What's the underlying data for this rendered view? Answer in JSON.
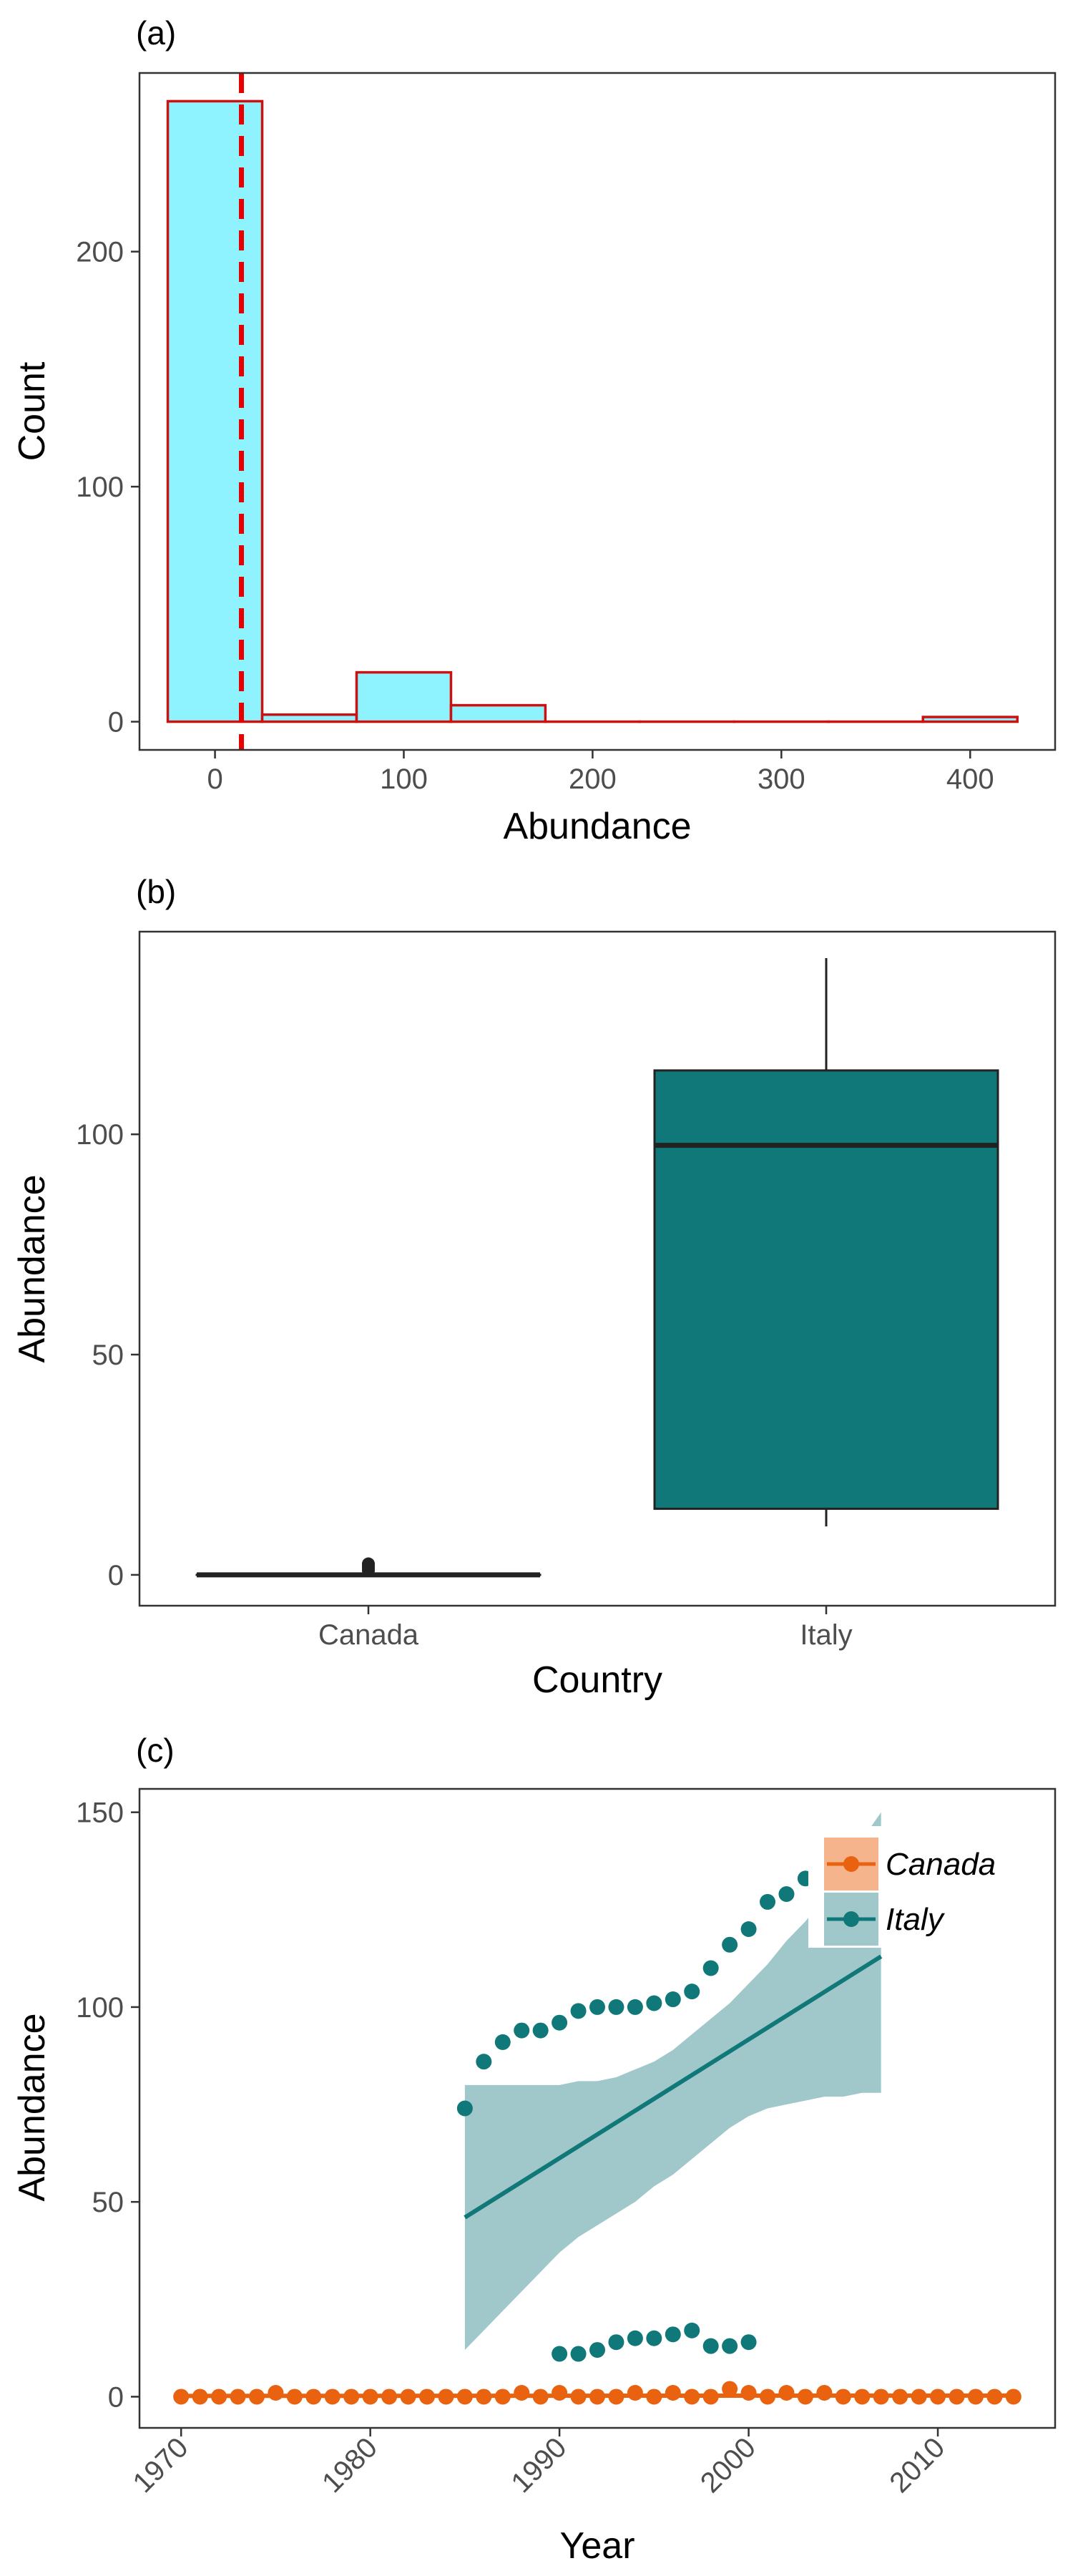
{
  "chart_data": [
    {
      "panel": "(a)",
      "type": "histogram",
      "xlabel": "Abundance",
      "ylabel": "Count",
      "xlim": [
        -40,
        445
      ],
      "ylim": [
        -12,
        276
      ],
      "x_ticks": [
        0,
        100,
        200,
        300,
        400
      ],
      "y_ticks": [
        0,
        100,
        200
      ],
      "bins": [
        {
          "start": -25,
          "end": 25,
          "count": 264
        },
        {
          "start": 25,
          "end": 75,
          "count": 3
        },
        {
          "start": 75,
          "end": 125,
          "count": 21
        },
        {
          "start": 125,
          "end": 175,
          "count": 7
        },
        {
          "start": 175,
          "end": 225,
          "count": 0
        },
        {
          "start": 225,
          "end": 275,
          "count": 0
        },
        {
          "start": 275,
          "end": 325,
          "count": 0
        },
        {
          "start": 325,
          "end": 375,
          "count": 0
        },
        {
          "start": 375,
          "end": 425,
          "count": 2
        }
      ],
      "reference_line": {
        "x": 14,
        "style": "dashed",
        "color": "#e60000"
      },
      "fill_color": "#8ef3ff",
      "border_color": "#cc1111",
      "grid": false
    },
    {
      "panel": "(b)",
      "type": "box",
      "xlabel": "Country",
      "ylabel": "Abundance",
      "ylim": [
        -7,
        146
      ],
      "y_ticks": [
        0,
        50,
        100
      ],
      "categories": [
        "Canada",
        "Italy"
      ],
      "boxes": [
        {
          "category": "Canada",
          "min": 0,
          "q1": 0,
          "median": 0,
          "q3": 0,
          "max": 0,
          "outliers": [
            1,
            1.5,
            2,
            2.5
          ],
          "fill": "#ffffff"
        },
        {
          "category": "Italy",
          "min": 11,
          "q1": 15,
          "median": 97.5,
          "q3": 114.5,
          "max": 140,
          "outliers": [],
          "fill": "#107878"
        }
      ],
      "grid": false
    },
    {
      "panel": "(c)",
      "type": "scatter",
      "xlabel": "Year",
      "ylabel": "Abundance",
      "xlim": [
        1967.8,
        2016.2
      ],
      "ylim": [
        -8,
        156
      ],
      "x_ticks": [
        1970,
        1980,
        1990,
        2000,
        2010
      ],
      "y_ticks": [
        0,
        50,
        100,
        150
      ],
      "legend": {
        "placement": "top-right",
        "entries": [
          "Canada",
          "Italy"
        ]
      },
      "series": [
        {
          "name": "Canada",
          "color": "#e8620f",
          "ribbon_color": "#f5b48c",
          "points": [
            [
              1970,
              0
            ],
            [
              1971,
              0
            ],
            [
              1972,
              0
            ],
            [
              1973,
              0
            ],
            [
              1974,
              0
            ],
            [
              1975,
              1
            ],
            [
              1976,
              0
            ],
            [
              1977,
              0
            ],
            [
              1978,
              0
            ],
            [
              1979,
              0
            ],
            [
              1980,
              0
            ],
            [
              1981,
              0
            ],
            [
              1982,
              0
            ],
            [
              1983,
              0
            ],
            [
              1984,
              0
            ],
            [
              1985,
              0
            ],
            [
              1986,
              0
            ],
            [
              1987,
              0
            ],
            [
              1988,
              1
            ],
            [
              1989,
              0
            ],
            [
              1990,
              1
            ],
            [
              1991,
              0
            ],
            [
              1992,
              0
            ],
            [
              1993,
              0
            ],
            [
              1994,
              1
            ],
            [
              1995,
              0
            ],
            [
              1996,
              1
            ],
            [
              1997,
              0
            ],
            [
              1998,
              0
            ],
            [
              1999,
              2
            ],
            [
              2000,
              1
            ],
            [
              2001,
              0
            ],
            [
              2002,
              1
            ],
            [
              2003,
              0
            ],
            [
              2004,
              1
            ],
            [
              2005,
              0
            ],
            [
              2006,
              0
            ],
            [
              2007,
              0
            ],
            [
              2008,
              0
            ],
            [
              2009,
              0
            ],
            [
              2010,
              0
            ],
            [
              2011,
              0
            ],
            [
              2012,
              0
            ],
            [
              2013,
              0
            ],
            [
              2014,
              0
            ]
          ],
          "fit": {
            "x": [
              1970,
              2014
            ],
            "y": [
              0.2,
              0.3
            ]
          }
        },
        {
          "name": "Italy",
          "color": "#107878",
          "ribbon_color": "#a0c8ca",
          "points": [
            [
              1985,
              74
            ],
            [
              1986,
              86
            ],
            [
              1987,
              91
            ],
            [
              1988,
              94
            ],
            [
              1989,
              94
            ],
            [
              1990,
              96
            ],
            [
              1991,
              99
            ],
            [
              1992,
              100
            ],
            [
              1993,
              100
            ],
            [
              1994,
              100
            ],
            [
              1995,
              101
            ],
            [
              1996,
              102
            ],
            [
              1997,
              104
            ],
            [
              1998,
              110
            ],
            [
              1999,
              116
            ],
            [
              2000,
              120
            ],
            [
              2001,
              127
            ],
            [
              2002,
              129
            ],
            [
              2003,
              133
            ],
            [
              1990,
              11
            ],
            [
              1991,
              11
            ],
            [
              1992,
              12
            ],
            [
              1993,
              14
            ],
            [
              1994,
              15
            ],
            [
              1995,
              15
            ],
            [
              1996,
              16
            ],
            [
              1997,
              17
            ],
            [
              1998,
              13
            ],
            [
              1999,
              13
            ],
            [
              2000,
              14
            ]
          ],
          "fit": {
            "x": [
              1985,
              2007
            ],
            "y": [
              46,
              113
            ]
          },
          "ci_band": {
            "x": [
              1985,
              1986,
              1987,
              1988,
              1989,
              1990,
              1991,
              1992,
              1993,
              1994,
              1995,
              1996,
              1997,
              1998,
              1999,
              2000,
              2001,
              2002,
              2003,
              2004,
              2005,
              2006,
              2007
            ],
            "lower": [
              12,
              17,
              22,
              27,
              32,
              37,
              41,
              44,
              47,
              50,
              54,
              57,
              61,
              65,
              69,
              72,
              74,
              75,
              76,
              77,
              77,
              78,
              78
            ],
            "upper": [
              80,
              80,
              80,
              80,
              80,
              80,
              81,
              81,
              82,
              84,
              86,
              89,
              93,
              97,
              101,
              106,
              111,
              117,
              122,
              128,
              136,
              143,
              150
            ]
          }
        }
      ],
      "grid": false
    }
  ]
}
